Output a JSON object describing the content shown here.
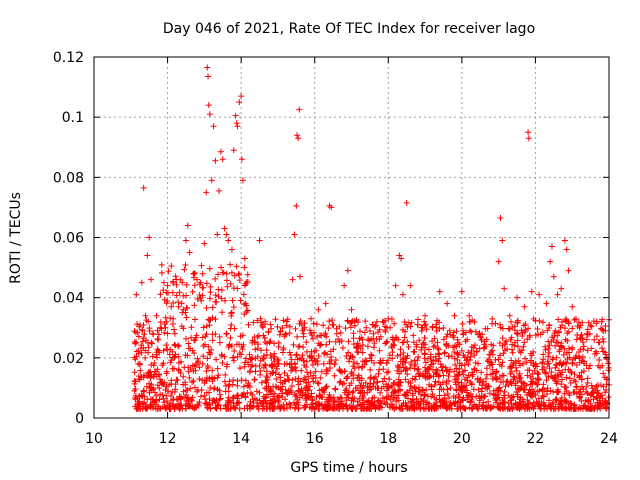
{
  "chart_data": {
    "type": "scatter",
    "title": "Day 046 of 2021, Rate Of TEC Index for receiver lago",
    "xlabel": "GPS time / hours",
    "ylabel": "ROTI / TECUs",
    "xlim": [
      10,
      24
    ],
    "ylim": [
      0,
      0.12
    ],
    "xticks": [
      "10",
      "12",
      "14",
      "16",
      "18",
      "20",
      "22",
      "24"
    ],
    "yticks": [
      "0",
      "0.02",
      "0.04",
      "0.06",
      "0.08",
      "0.1",
      "0.12"
    ],
    "grid": true,
    "marker": "+",
    "color": "#ff0000",
    "series": [
      {
        "points": [
          [
            11.1,
            0.009
          ],
          [
            11.15,
            0.041
          ],
          [
            11.2,
            0.018
          ],
          [
            11.25,
            0.031
          ],
          [
            11.3,
            0.045
          ],
          [
            11.35,
            0.0765
          ],
          [
            11.4,
            0.034
          ],
          [
            11.45,
            0.054
          ],
          [
            11.5,
            0.06
          ],
          [
            11.55,
            0.046
          ],
          [
            11.6,
            0.028
          ],
          [
            11.7,
            0.034
          ],
          [
            11.8,
            0.03
          ],
          [
            11.9,
            0.045
          ],
          [
            12.0,
            0.044
          ],
          [
            12.1,
            0.037
          ],
          [
            12.2,
            0.028
          ],
          [
            12.3,
            0.037
          ],
          [
            12.4,
            0.045
          ],
          [
            12.5,
            0.059
          ],
          [
            12.55,
            0.064
          ],
          [
            12.6,
            0.055
          ],
          [
            12.7,
            0.048
          ],
          [
            12.8,
            0.046
          ],
          [
            12.9,
            0.045
          ],
          [
            13.0,
            0.058
          ],
          [
            13.05,
            0.075
          ],
          [
            13.08,
            0.1165
          ],
          [
            13.1,
            0.1135
          ],
          [
            13.12,
            0.104
          ],
          [
            13.15,
            0.101
          ],
          [
            13.2,
            0.079
          ],
          [
            13.25,
            0.097
          ],
          [
            13.3,
            0.0855
          ],
          [
            13.35,
            0.061
          ],
          [
            13.4,
            0.0755
          ],
          [
            13.45,
            0.0885
          ],
          [
            13.5,
            0.086
          ],
          [
            13.55,
            0.063
          ],
          [
            13.6,
            0.061
          ],
          [
            13.65,
            0.059
          ],
          [
            13.7,
            0.051
          ],
          [
            13.75,
            0.056
          ],
          [
            13.8,
            0.089
          ],
          [
            13.85,
            0.1005
          ],
          [
            13.88,
            0.098
          ],
          [
            13.9,
            0.097
          ],
          [
            13.95,
            0.105
          ],
          [
            14.0,
            0.107
          ],
          [
            14.02,
            0.086
          ],
          [
            14.05,
            0.079
          ],
          [
            14.1,
            0.053
          ],
          [
            14.2,
            0.031
          ],
          [
            14.3,
            0.025
          ],
          [
            14.5,
            0.059
          ],
          [
            14.7,
            0.021
          ],
          [
            15.0,
            0.018
          ],
          [
            15.2,
            0.028
          ],
          [
            15.4,
            0.046
          ],
          [
            15.45,
            0.061
          ],
          [
            15.5,
            0.0705
          ],
          [
            15.52,
            0.094
          ],
          [
            15.55,
            0.093
          ],
          [
            15.58,
            0.1025
          ],
          [
            15.6,
            0.047
          ],
          [
            15.7,
            0.028
          ],
          [
            15.9,
            0.033
          ],
          [
            16.1,
            0.036
          ],
          [
            16.3,
            0.038
          ],
          [
            16.4,
            0.0705
          ],
          [
            16.45,
            0.07
          ],
          [
            16.6,
            0.028
          ],
          [
            16.8,
            0.044
          ],
          [
            16.9,
            0.049
          ],
          [
            17.0,
            0.036
          ],
          [
            17.2,
            0.024
          ],
          [
            17.4,
            0.03
          ],
          [
            17.6,
            0.028
          ],
          [
            17.8,
            0.027
          ],
          [
            18.0,
            0.033
          ],
          [
            18.2,
            0.044
          ],
          [
            18.3,
            0.054
          ],
          [
            18.35,
            0.053
          ],
          [
            18.4,
            0.041
          ],
          [
            18.5,
            0.0715
          ],
          [
            18.6,
            0.044
          ],
          [
            18.8,
            0.031
          ],
          [
            19.0,
            0.034
          ],
          [
            19.2,
            0.03
          ],
          [
            19.4,
            0.042
          ],
          [
            19.6,
            0.038
          ],
          [
            19.8,
            0.034
          ],
          [
            20.0,
            0.042
          ],
          [
            20.2,
            0.034
          ],
          [
            20.4,
            0.022
          ],
          [
            20.6,
            0.023
          ],
          [
            20.8,
            0.022
          ],
          [
            21.0,
            0.052
          ],
          [
            21.05,
            0.0665
          ],
          [
            21.1,
            0.059
          ],
          [
            21.15,
            0.043
          ],
          [
            21.3,
            0.034
          ],
          [
            21.5,
            0.04
          ],
          [
            21.7,
            0.037
          ],
          [
            21.8,
            0.095
          ],
          [
            21.82,
            0.093
          ],
          [
            21.9,
            0.042
          ],
          [
            22.1,
            0.041
          ],
          [
            22.3,
            0.038
          ],
          [
            22.4,
            0.052
          ],
          [
            22.45,
            0.057
          ],
          [
            22.5,
            0.047
          ],
          [
            22.6,
            0.041
          ],
          [
            22.7,
            0.043
          ],
          [
            22.8,
            0.059
          ],
          [
            22.85,
            0.056
          ],
          [
            22.9,
            0.049
          ],
          [
            23.0,
            0.037
          ],
          [
            23.2,
            0.03
          ],
          [
            23.4,
            0.028
          ],
          [
            23.6,
            0.026
          ],
          [
            23.8,
            0.032
          ],
          [
            23.9,
            0.029
          ],
          [
            24.0,
            0.011
          ]
        ]
      }
    ]
  }
}
